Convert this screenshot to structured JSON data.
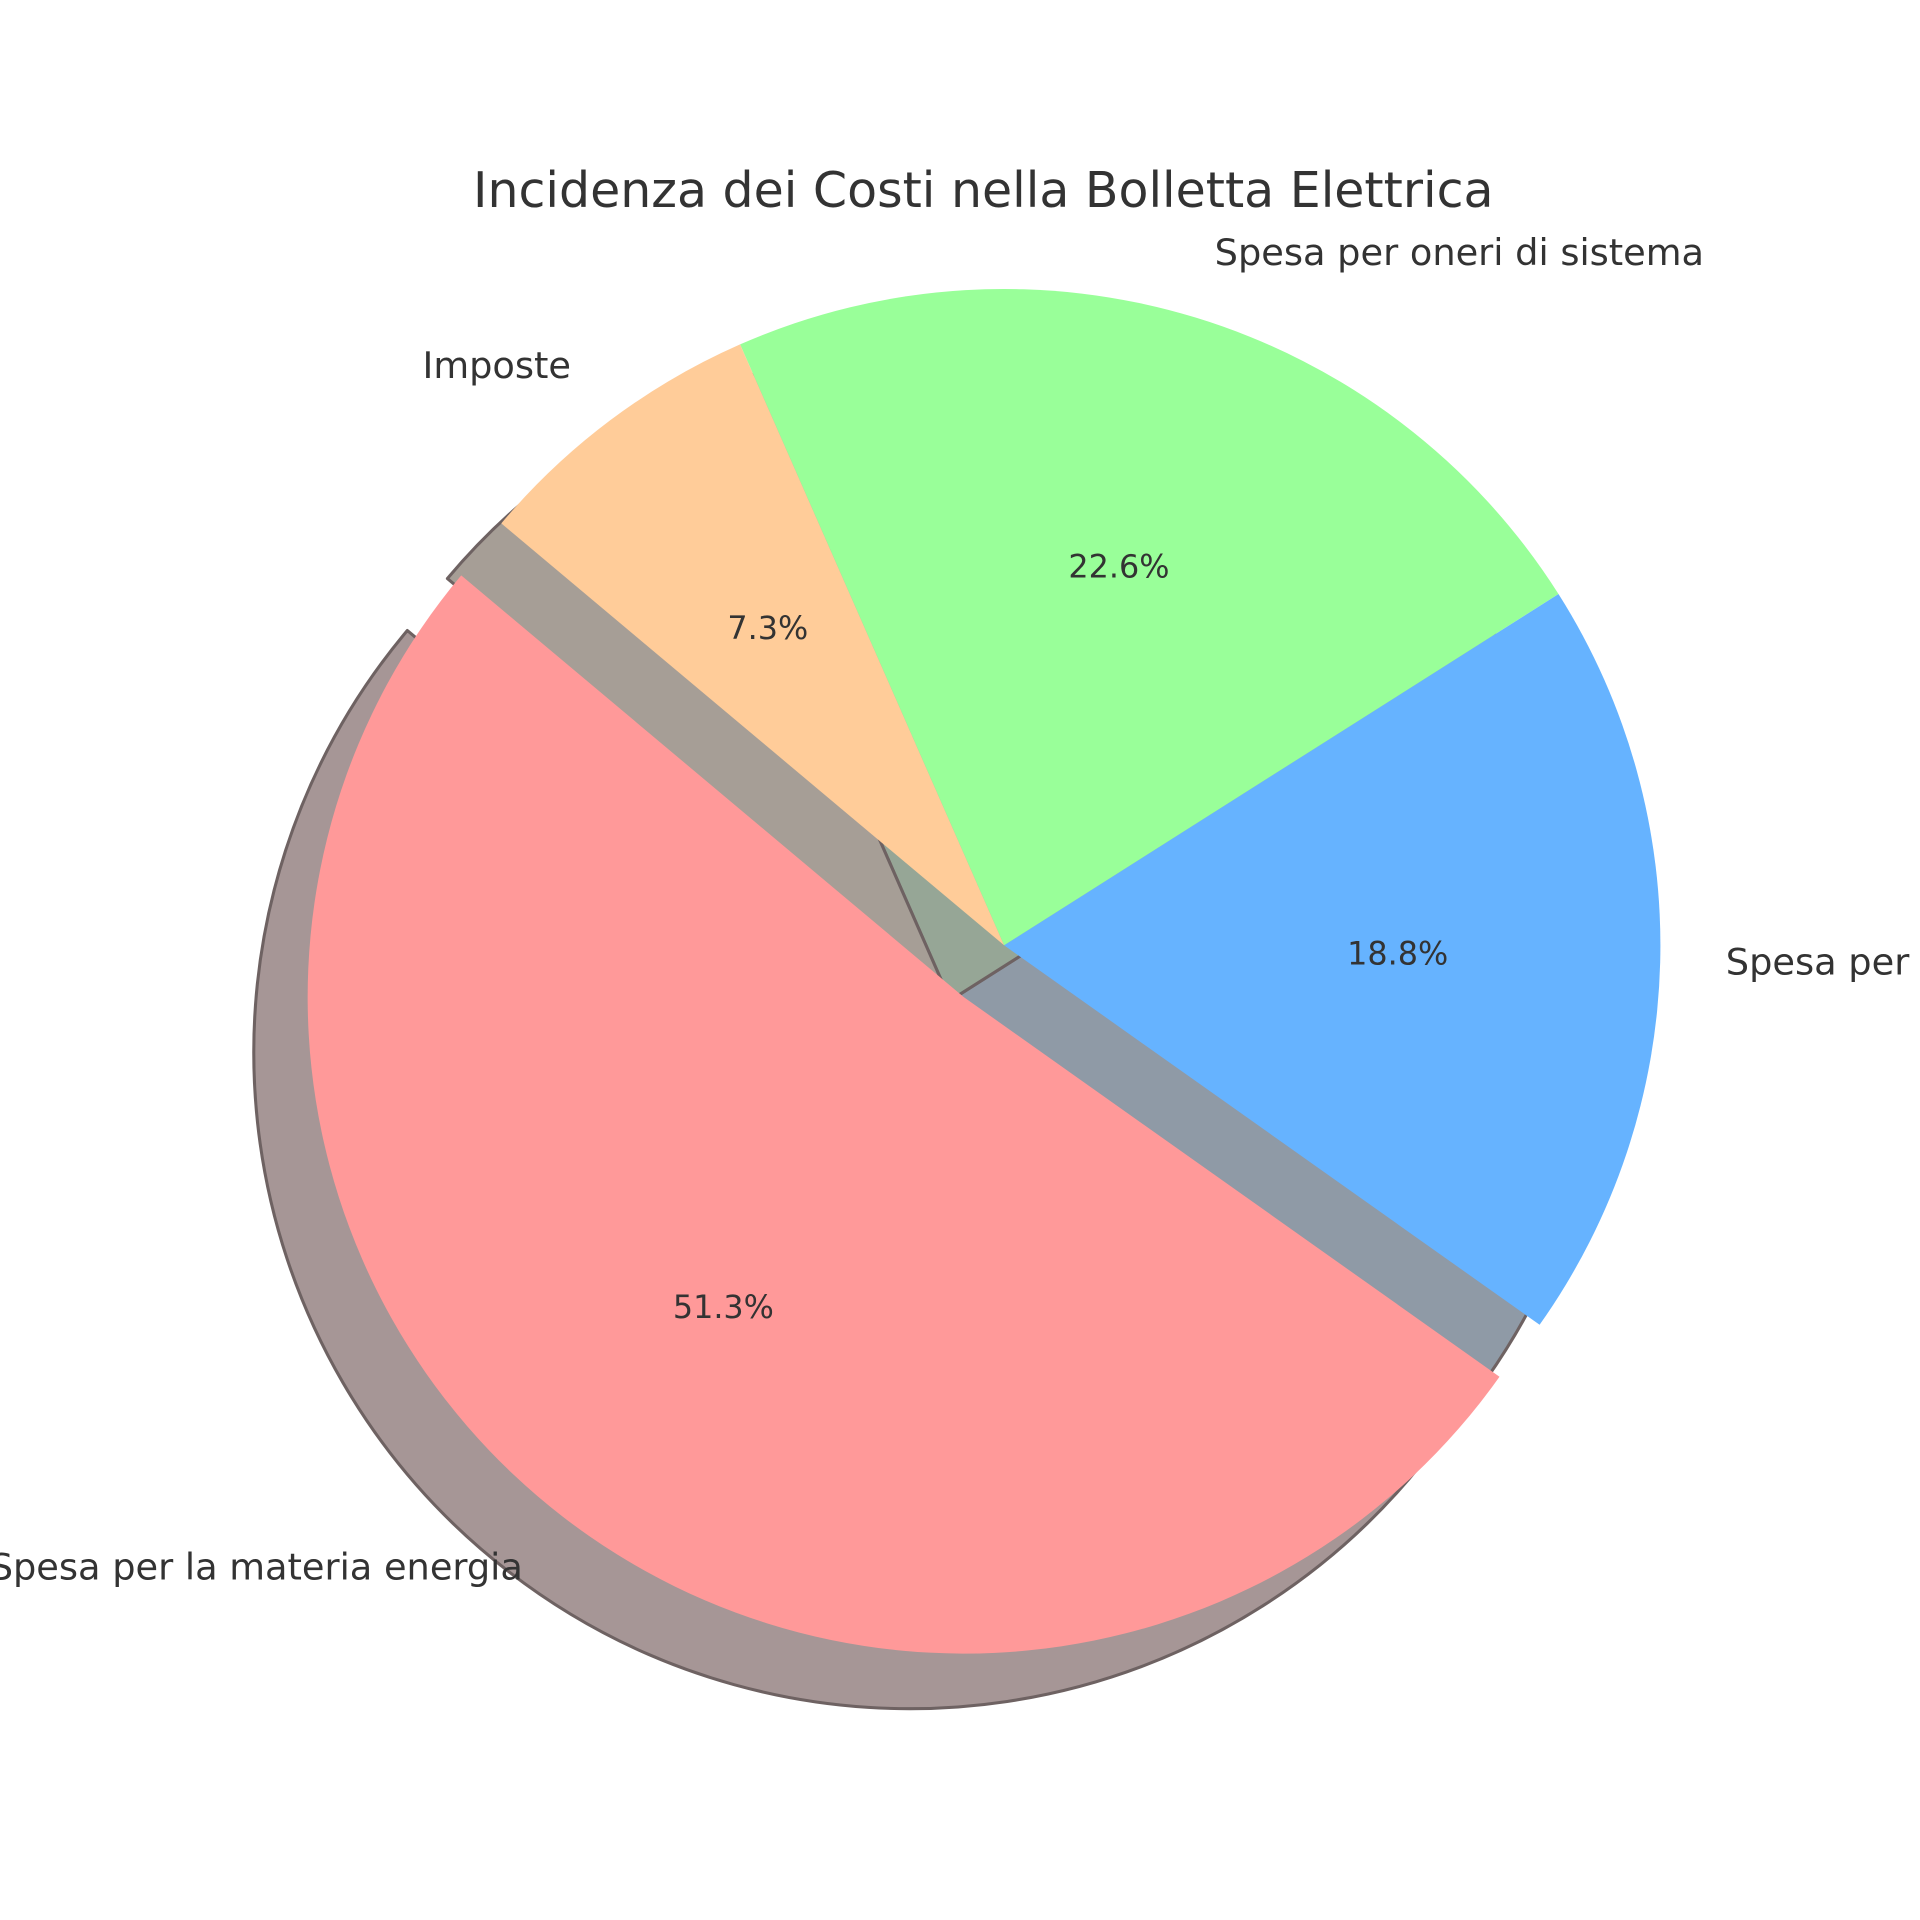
{
  "chart_data": {
    "type": "pie",
    "title": "Incidenza dei Costi nella Bolletta Elettrica",
    "categories": [
      "Spesa per la materia energia",
      "Spesa per",
      "Spesa per oneri di sistema",
      "Imposte"
    ],
    "values": [
      51.3,
      18.8,
      22.6,
      7.3
    ],
    "value_labels": [
      "51.3%",
      "18.8%",
      "22.6%",
      "7.3%"
    ],
    "colors": [
      "#ff9999",
      "#66b3ff",
      "#99ff99",
      "#ffcc99"
    ],
    "explode": [
      0.1,
      0,
      0,
      0
    ],
    "startangle": 140,
    "shadow": true
  }
}
